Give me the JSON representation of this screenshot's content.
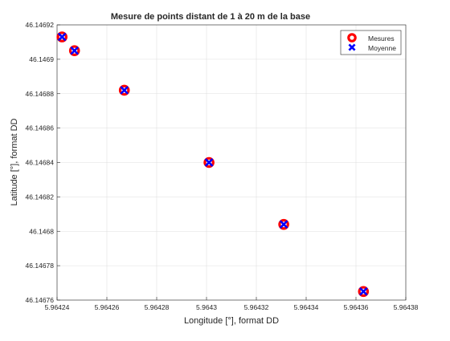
{
  "chart_data": {
    "type": "scatter",
    "title": "Mesure de points distant de 1 à 20 m de la base",
    "xlabel": "Longitude [°], format DD",
    "ylabel": "Latitude [°], format DD",
    "xlim": [
      5.96424,
      5.96438
    ],
    "ylim": [
      46.14676,
      46.14692
    ],
    "x_ticks": [
      5.96424,
      5.96426,
      5.96428,
      5.9643,
      5.96432,
      5.96434,
      5.96436,
      5.96438
    ],
    "x_tick_labels": [
      "5.96424",
      "5.96426",
      "5.96428",
      "5.9643",
      "5.96432",
      "5.96434",
      "5.96436",
      "5.96438"
    ],
    "y_ticks": [
      46.14676,
      46.14678,
      46.1468,
      46.14682,
      46.14684,
      46.14686,
      46.14688,
      46.1469,
      46.14692
    ],
    "y_tick_labels": [
      "46.14676",
      "46.14678",
      "46.1468",
      "46.14682",
      "46.14684",
      "46.14686",
      "46.14688",
      "46.1469",
      "46.14692"
    ],
    "grid": true,
    "legend_position": "top-right",
    "series": [
      {
        "name": "Mesures",
        "marker": "circle",
        "color": "#ff0000",
        "points": [
          [
            5.964242,
            46.146913
          ],
          [
            5.964247,
            46.146905
          ],
          [
            5.964267,
            46.146882
          ],
          [
            5.964301,
            46.14684
          ],
          [
            5.964331,
            46.146804
          ],
          [
            5.964363,
            46.146765
          ]
        ]
      },
      {
        "name": "Moyenne",
        "marker": "x",
        "color": "#0000ff",
        "points": [
          [
            5.964242,
            46.146913
          ],
          [
            5.964247,
            46.146905
          ],
          [
            5.964267,
            46.146882
          ],
          [
            5.964301,
            46.14684
          ],
          [
            5.964331,
            46.146804
          ],
          [
            5.964363,
            46.146765
          ]
        ]
      }
    ]
  }
}
